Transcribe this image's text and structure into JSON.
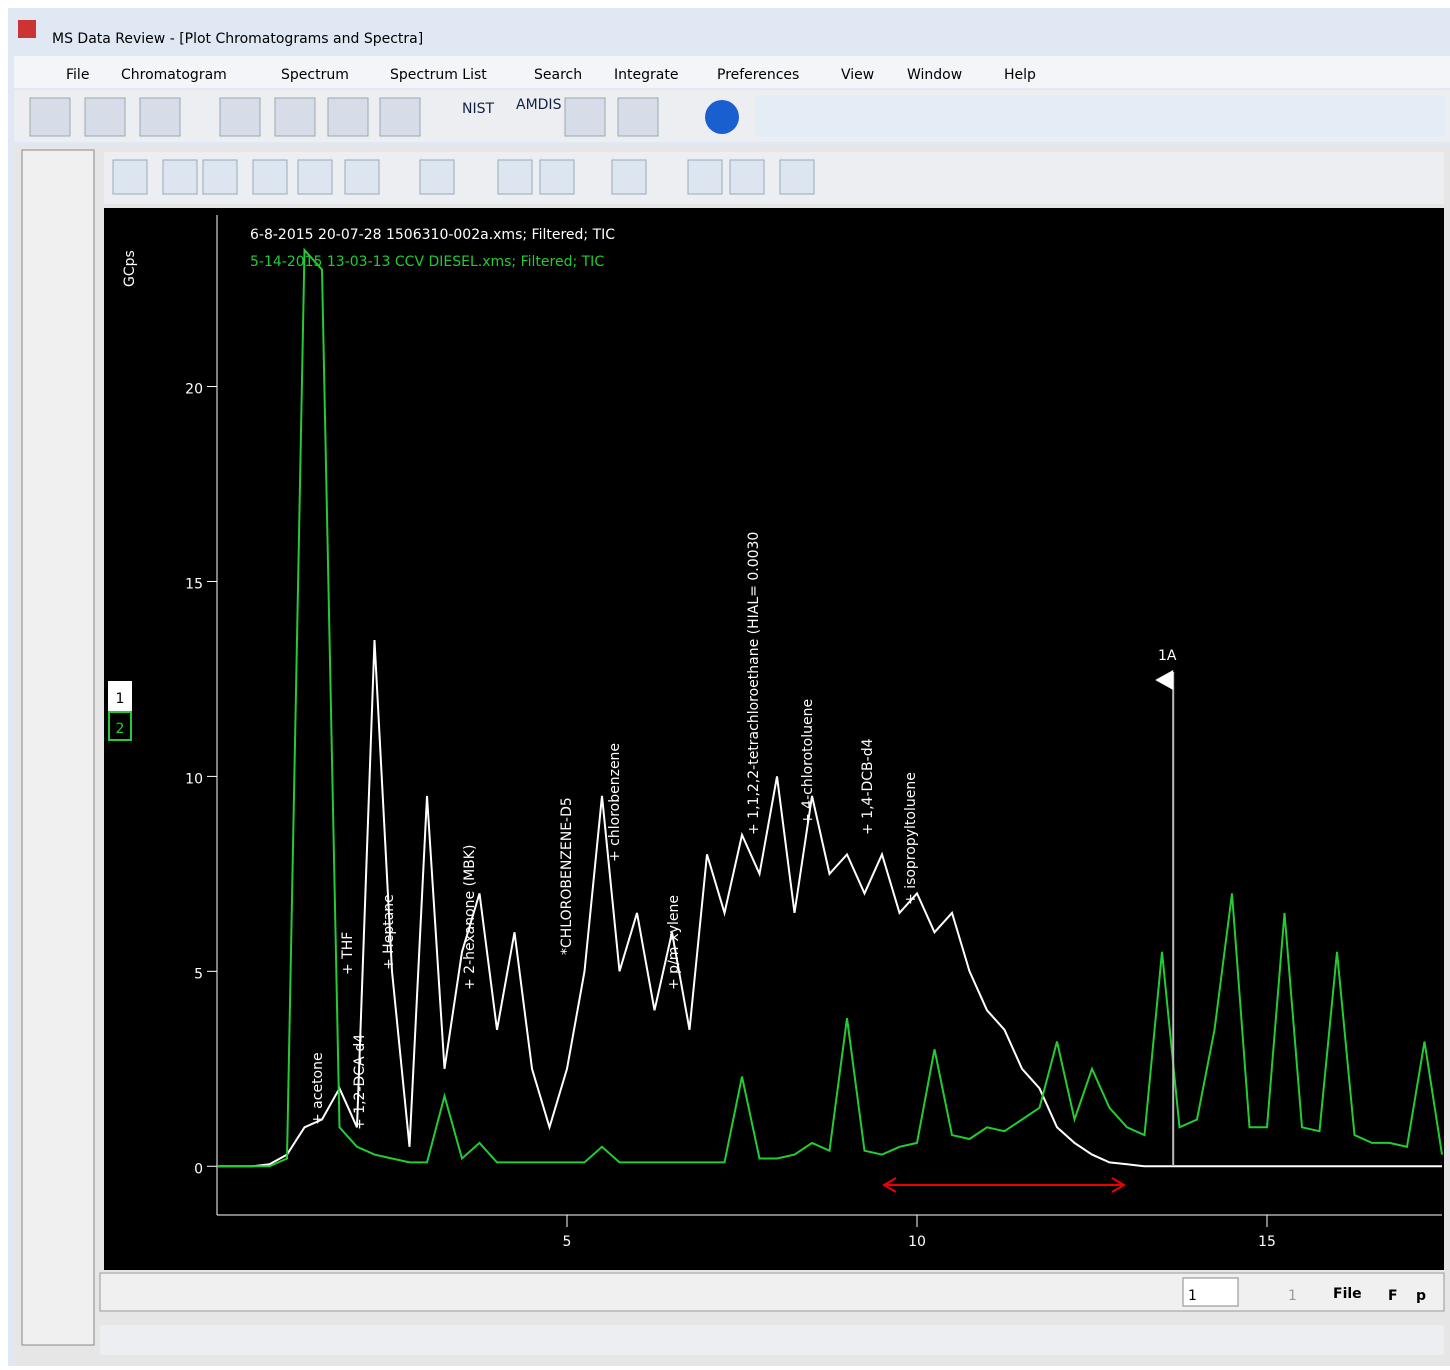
{
  "window": {
    "title": "MS Data Review - [Plot Chromatograms and Spectra]",
    "menu": [
      "File",
      "Chromatogram",
      "Spectrum",
      "Spectrum List",
      "Search",
      "Integrate",
      "Preferences",
      "View",
      "Window",
      "Help"
    ],
    "toolbar": {
      "nist": "NIST",
      "amdis": "AMDIS"
    }
  },
  "chart_data": {
    "type": "line",
    "y_label": "GCps",
    "x": [
      0,
      0.25,
      0.5,
      0.75,
      1,
      1.25,
      1.5,
      1.75,
      2,
      2.25,
      2.5,
      2.75,
      3,
      3.25,
      3.5,
      3.75,
      4,
      4.25,
      4.5,
      4.75,
      5,
      5.25,
      5.5,
      5.75,
      6,
      6.25,
      6.5,
      6.75,
      7,
      7.25,
      7.5,
      7.75,
      8,
      8.25,
      8.5,
      8.75,
      9,
      9.25,
      9.5,
      9.75,
      10,
      10.25,
      10.5,
      10.75,
      11,
      11.25,
      11.5,
      11.75,
      12,
      12.25,
      12.5,
      12.75,
      13,
      13.25,
      13.5,
      13.75,
      14,
      14.25,
      14.5,
      14.75,
      15,
      15.25,
      15.5,
      15.75,
      16,
      16.25,
      16.5,
      16.75,
      17,
      17.25,
      17.5
    ],
    "series": [
      {
        "name": "6-8-2015 20-07-28 1506310-002a.xms;  Filtered;  TIC",
        "color": "#ffffff",
        "selector": "1",
        "values": [
          0,
          0,
          0,
          0.05,
          0.3,
          1.0,
          1.2,
          2.0,
          1.0,
          13.5,
          5,
          0.5,
          9.5,
          2.5,
          5.5,
          7.0,
          3.5,
          6.0,
          2.5,
          1.0,
          2.5,
          5.0,
          9.5,
          5.0,
          6.5,
          4.0,
          6.0,
          3.5,
          8.0,
          6.5,
          8.5,
          7.5,
          10.0,
          6.5,
          9.5,
          7.5,
          8.0,
          7.0,
          8.0,
          6.5,
          7.0,
          6.0,
          6.5,
          5.0,
          4.0,
          3.5,
          2.5,
          2.0,
          1.0,
          0.6,
          0.3,
          0.1,
          0.05,
          0,
          0,
          0,
          0,
          0,
          0,
          0,
          0,
          0,
          0,
          0,
          0,
          0,
          0,
          0,
          0,
          0,
          0
        ]
      },
      {
        "name": "5-14-2015 13-03-13 CCV DIESEL.xms;  Filtered;  TIC",
        "color": "#22cc33",
        "selector": "2",
        "values": [
          0,
          0,
          0,
          0,
          0.2,
          23.5,
          23,
          1.0,
          0.5,
          0.3,
          0.2,
          0.1,
          0.1,
          1.8,
          0.2,
          0.6,
          0.1,
          0.1,
          0.1,
          0.1,
          0.1,
          0.1,
          0.5,
          0.1,
          0.1,
          0.1,
          0.1,
          0.1,
          0.1,
          0.1,
          2.3,
          0.2,
          0.2,
          0.3,
          0.6,
          0.4,
          3.8,
          0.4,
          0.3,
          0.5,
          0.6,
          3.0,
          0.8,
          0.7,
          1.0,
          0.9,
          1.2,
          1.5,
          3.2,
          1.2,
          2.5,
          1.5,
          1.0,
          0.8,
          5.5,
          1.0,
          1.2,
          3.5,
          7.0,
          1.0,
          1.0,
          6.5,
          1.0,
          0.9,
          5.5,
          0.8,
          0.6,
          0.6,
          0.5,
          3.2,
          0.3
        ]
      }
    ],
    "xlim": [
      0,
      17.5
    ],
    "ylim": [
      -1.25,
      24.4
    ],
    "xticks": [
      5,
      10,
      15
    ],
    "yticks": [
      0,
      5,
      10,
      15,
      20
    ],
    "annotations": [
      "+ acetone",
      "+ 1,2-DCA-d4",
      "+ THF",
      "+ Heptane",
      "+ 2-hexanone (MBK)",
      "*CHLOROBENZENE-D5",
      "+ chlorobenzene",
      "+ p/m-xylene",
      "+ 1,1,2,2-tetrachloroethane (HIAL= 0.0030",
      "+ 4-chlorotoluene",
      "+ 1,4-DCB-d4",
      "+ isopropyltoluene"
    ],
    "marker": {
      "label": "1A",
      "x": 13.66
    }
  },
  "navigator": {
    "page": "1",
    "count": "1",
    "file": "File",
    "f": "F",
    "p": "p"
  }
}
